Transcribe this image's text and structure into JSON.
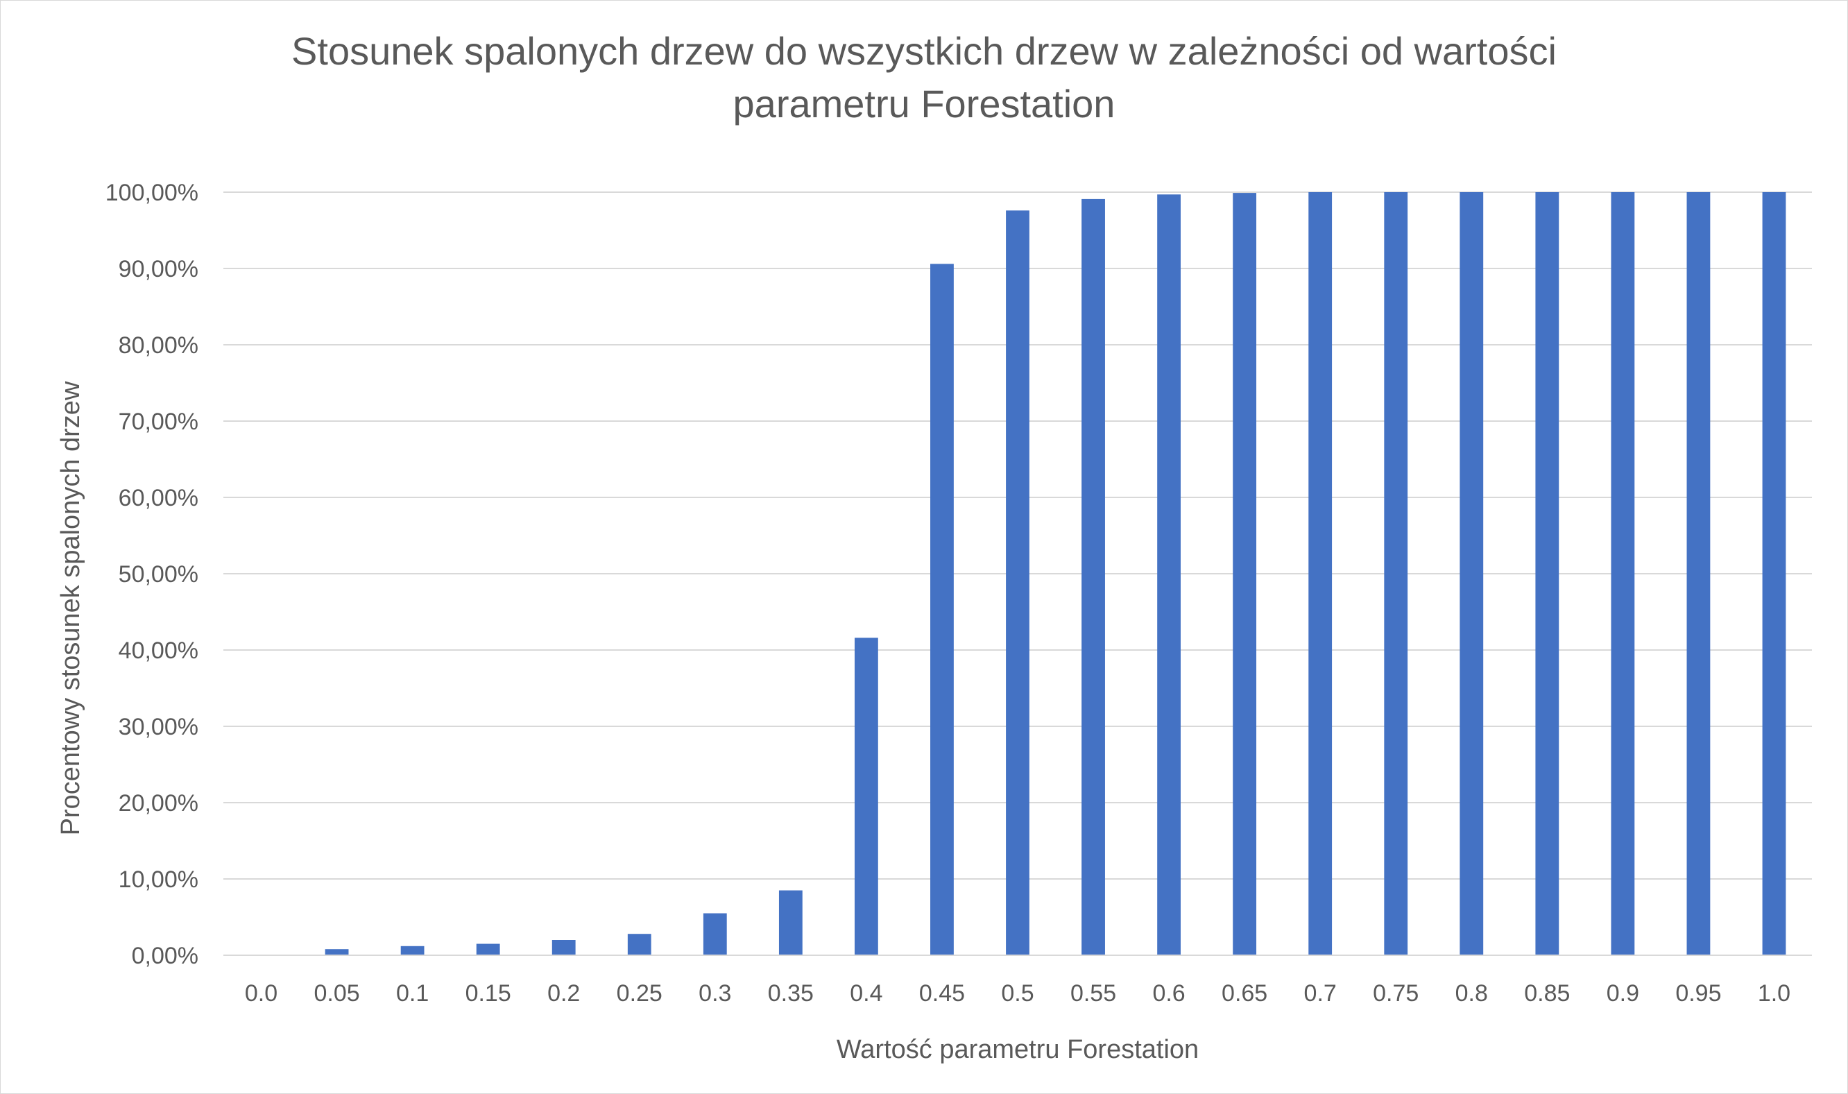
{
  "chart_data": {
    "type": "bar",
    "title": "Stosunek spalonych drzew do wszystkich drzew w zależności od wartości parametru Forestation",
    "xlabel": "Wartość parametru Forestation",
    "ylabel": "Procentowy stosunek spalonych drzew",
    "categories": [
      "0.0",
      "0.05",
      "0.1",
      "0.15",
      "0.2",
      "0.25",
      "0.3",
      "0.35",
      "0.4",
      "0.45",
      "0.5",
      "0.55",
      "0.6",
      "0.65",
      "0.7",
      "0.75",
      "0.8",
      "0.85",
      "0.9",
      "0.95",
      "1.0"
    ],
    "values": [
      0,
      0.8,
      1.2,
      1.5,
      2.0,
      2.8,
      5.5,
      8.5,
      41.6,
      90.6,
      97.6,
      99.1,
      99.7,
      99.9,
      100,
      100,
      100,
      100,
      100,
      100,
      100
    ],
    "ylim": [
      0,
      100
    ],
    "yticks": [
      0,
      10,
      20,
      30,
      40,
      50,
      60,
      70,
      80,
      90,
      100
    ],
    "ytick_labels": [
      "0,00%",
      "10,00%",
      "20,00%",
      "30,00%",
      "40,00%",
      "50,00%",
      "60,00%",
      "70,00%",
      "80,00%",
      "90,00%",
      "100,00%"
    ],
    "grid": true,
    "legend": "none",
    "bar_color": "#4472c4",
    "gridline_color": "#d9d9d9",
    "text_color": "#595959"
  }
}
